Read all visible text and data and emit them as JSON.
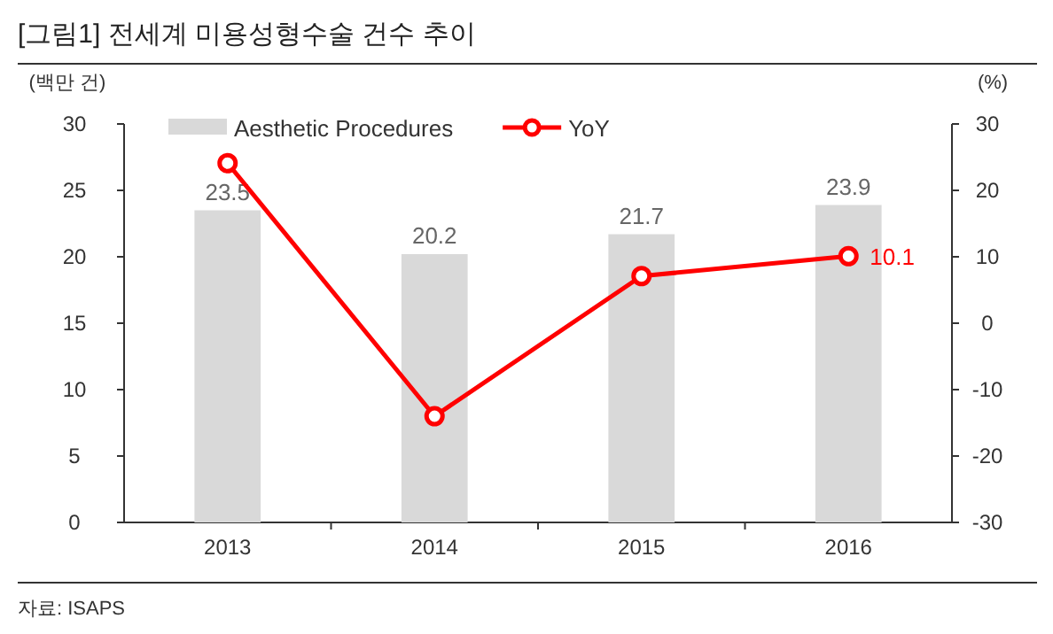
{
  "chart_data": {
    "type": "bar",
    "title": "[그림1]    전세계 미용성형수술 건수 추이",
    "ylabel": "(백만 건)",
    "y2label": "(%)",
    "categories": [
      "2013",
      "2014",
      "2015",
      "2016"
    ],
    "series": [
      {
        "name": "Aesthetic Procedures",
        "color": "#d9d9d9",
        "values": [
          23.5,
          20.2,
          21.7,
          23.9
        ],
        "value_labels": [
          "23.5",
          "20.2",
          "21.7",
          "23.9"
        ]
      },
      {
        "name": "YoY",
        "type": "line",
        "axis": "y2",
        "color": "#ff0000",
        "values": [
          24.1,
          -14.0,
          7.1,
          10.1
        ],
        "value_labels": [
          null,
          null,
          null,
          "10.1"
        ]
      }
    ],
    "ylim": [
      0,
      30
    ],
    "yticks": [
      0,
      5,
      10,
      15,
      20,
      25,
      30
    ],
    "y2lim": [
      -30,
      30
    ],
    "y2ticks": [
      -30,
      -20,
      -10,
      0,
      10,
      20,
      30
    ],
    "legend": "top",
    "marker": "circle",
    "grid": false,
    "annotations": [
      "자료: ISAPS"
    ]
  }
}
